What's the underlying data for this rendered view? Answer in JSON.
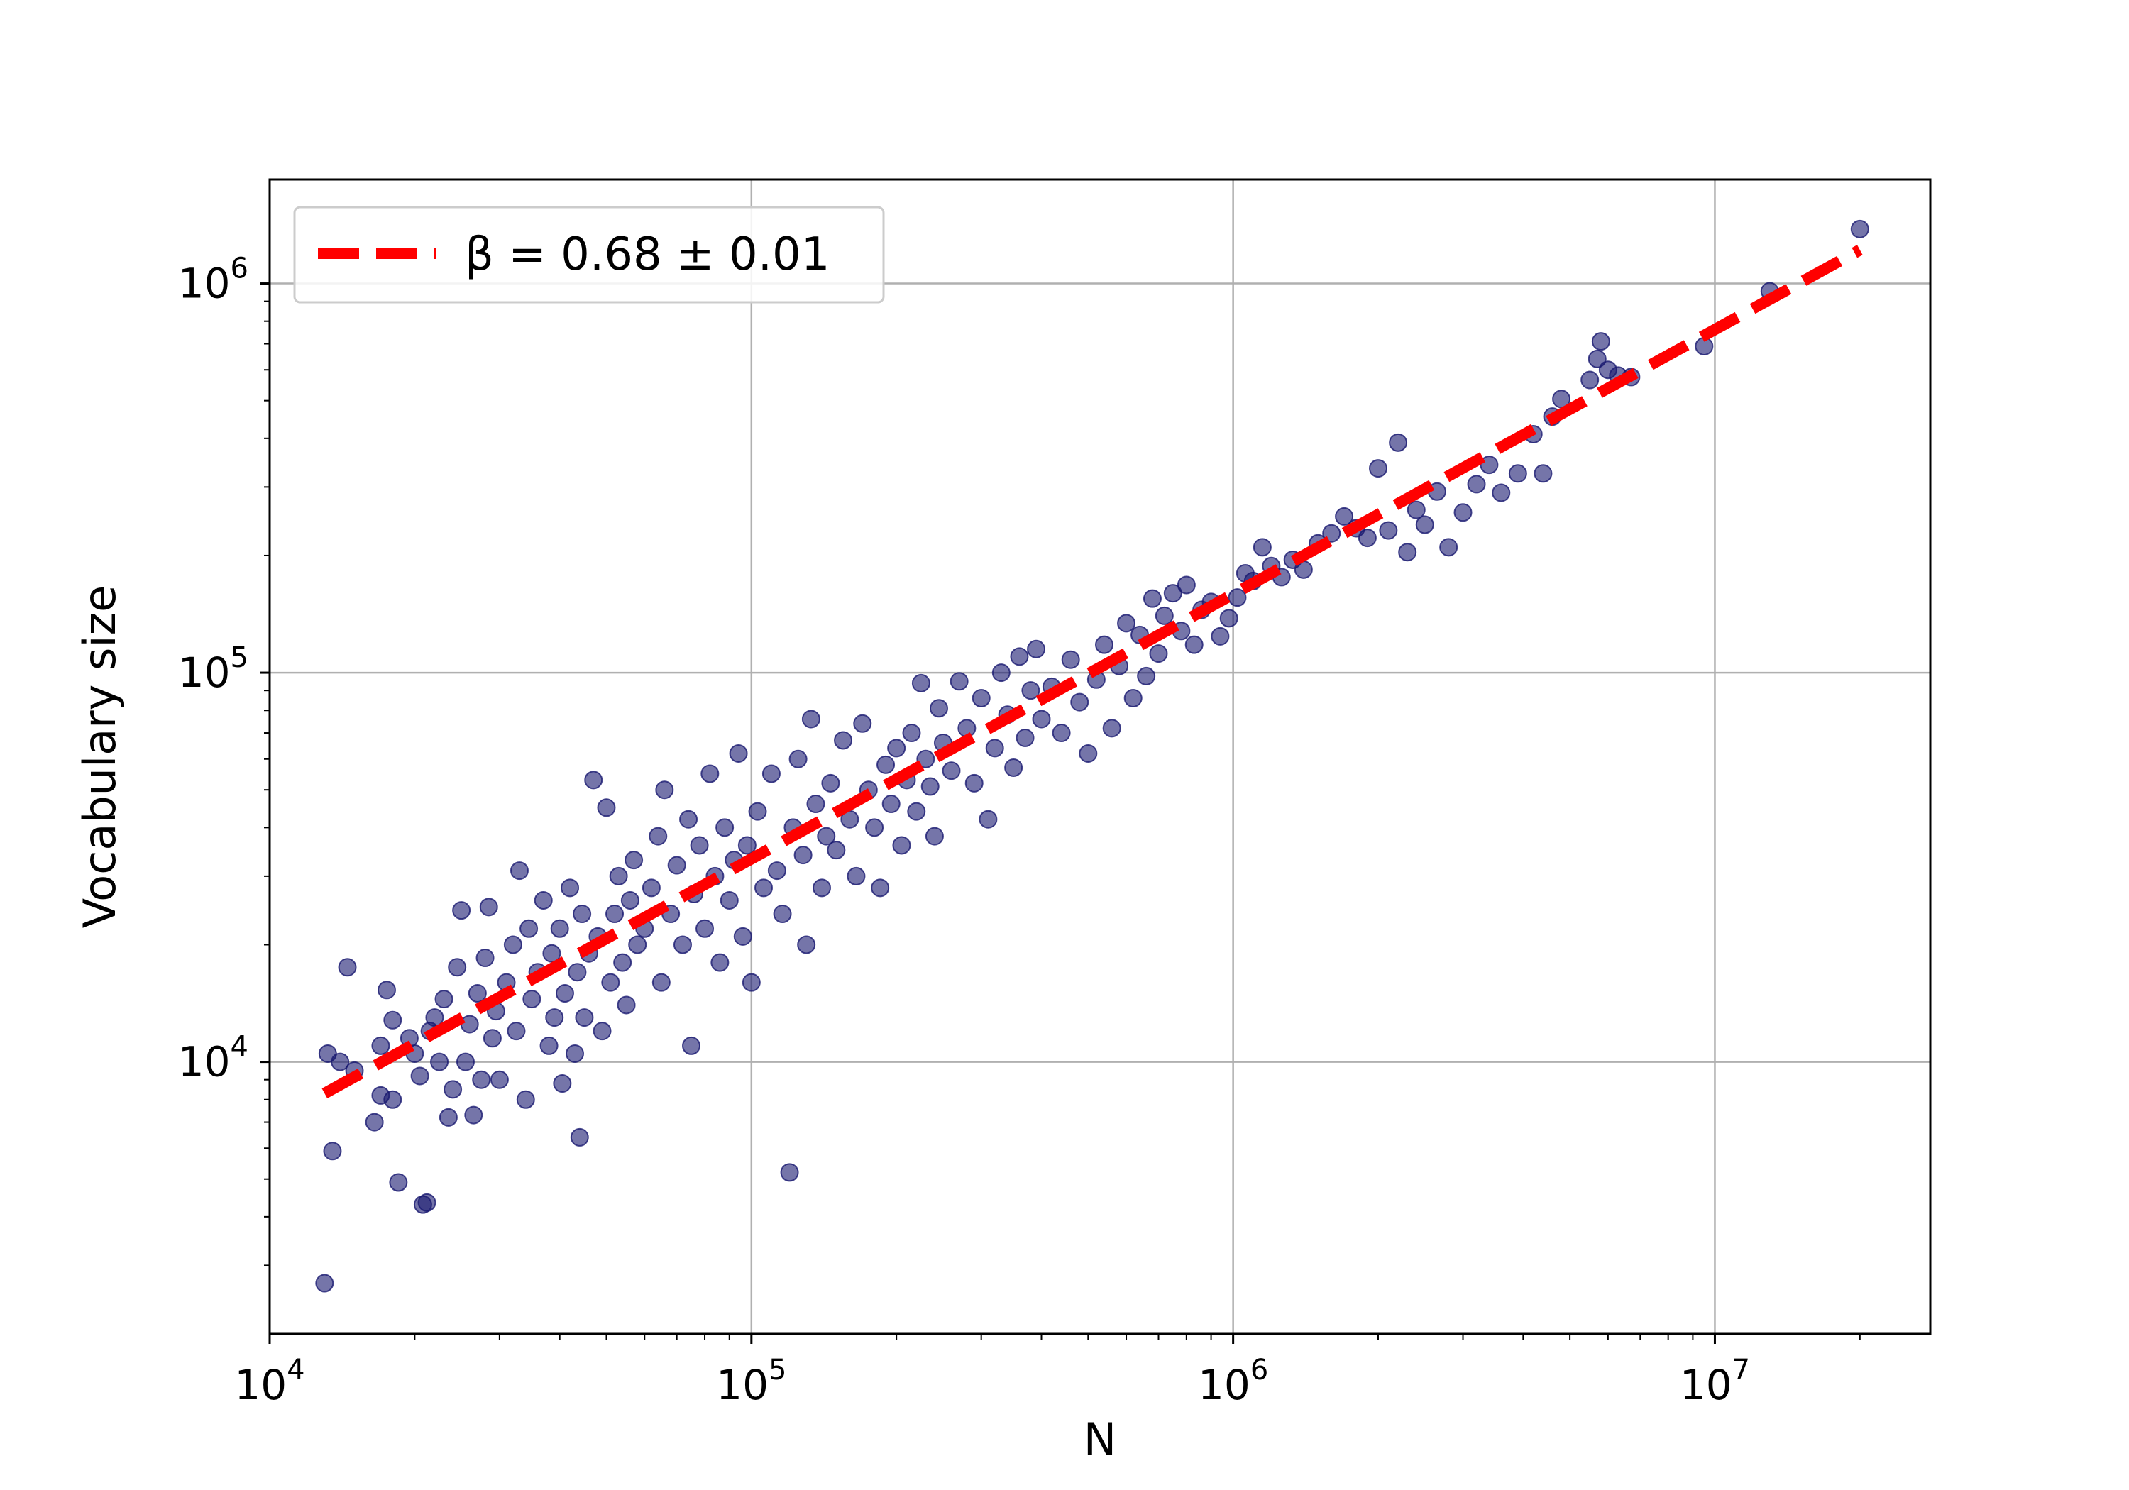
{
  "chart_data": {
    "type": "scatter",
    "title": "",
    "xlabel": "N",
    "ylabel": "Vocabulary size",
    "x_scale": "log",
    "y_scale": "log",
    "xlim": [
      10000,
      28000000
    ],
    "ylim": [
      2000,
      1850000
    ],
    "grid": true,
    "legend_position": "top-left",
    "x_ticks": [
      {
        "base": "10",
        "exp": "4",
        "value": 10000
      },
      {
        "base": "10",
        "exp": "5",
        "value": 100000
      },
      {
        "base": "10",
        "exp": "6",
        "value": 1000000
      },
      {
        "base": "10",
        "exp": "7",
        "value": 10000000
      }
    ],
    "y_ticks": [
      {
        "base": "10",
        "exp": "4",
        "value": 10000
      },
      {
        "base": "10",
        "exp": "5",
        "value": 100000
      },
      {
        "base": "10",
        "exp": "6",
        "value": 1000000
      }
    ],
    "fit": {
      "label": "β = 0.68 ± 0.01",
      "beta": 0.68,
      "beta_err": 0.01,
      "color": "#ff0000",
      "style": "dashed",
      "x_range": [
        13000,
        20000000
      ],
      "y_range": [
        8300,
        1220000
      ]
    },
    "scatter_color": "#191970",
    "points": [
      [
        13000,
        2700
      ],
      [
        13500,
        5900
      ],
      [
        13200,
        10500
      ],
      [
        14500,
        17500
      ],
      [
        14000,
        10000
      ],
      [
        15000,
        9500
      ],
      [
        16500,
        7000
      ],
      [
        17000,
        11000
      ],
      [
        17500,
        15300
      ],
      [
        17000,
        8200
      ],
      [
        18000,
        12800
      ],
      [
        18500,
        4900
      ],
      [
        18000,
        8000
      ],
      [
        19500,
        11500
      ],
      [
        20000,
        10500
      ],
      [
        20500,
        9200
      ],
      [
        20800,
        4300
      ],
      [
        21200,
        4350
      ],
      [
        21500,
        12000
      ],
      [
        22000,
        13000
      ],
      [
        22500,
        10000
      ],
      [
        23000,
        14500
      ],
      [
        23500,
        7200
      ],
      [
        24000,
        8500
      ],
      [
        24500,
        17500
      ],
      [
        25000,
        24500
      ],
      [
        25500,
        10000
      ],
      [
        26000,
        12500
      ],
      [
        26500,
        7300
      ],
      [
        27000,
        15000
      ],
      [
        27500,
        9000
      ],
      [
        28000,
        18500
      ],
      [
        28500,
        25000
      ],
      [
        29000,
        11500
      ],
      [
        29500,
        13500
      ],
      [
        30000,
        9000
      ],
      [
        31000,
        16000
      ],
      [
        32000,
        20000
      ],
      [
        32500,
        12000
      ],
      [
        33000,
        31000
      ],
      [
        34000,
        8000
      ],
      [
        34500,
        22000
      ],
      [
        35000,
        14500
      ],
      [
        36000,
        17000
      ],
      [
        37000,
        26000
      ],
      [
        38000,
        11000
      ],
      [
        38500,
        19000
      ],
      [
        39000,
        13000
      ],
      [
        40000,
        22000
      ],
      [
        40500,
        8800
      ],
      [
        41000,
        15000
      ],
      [
        42000,
        28000
      ],
      [
        43000,
        10500
      ],
      [
        43500,
        17000
      ],
      [
        44000,
        6400
      ],
      [
        44500,
        24000
      ],
      [
        45000,
        13000
      ],
      [
        46000,
        19000
      ],
      [
        47000,
        53000
      ],
      [
        48000,
        21000
      ],
      [
        49000,
        12000
      ],
      [
        50000,
        45000
      ],
      [
        51000,
        16000
      ],
      [
        52000,
        24000
      ],
      [
        53000,
        30000
      ],
      [
        54000,
        18000
      ],
      [
        55000,
        14000
      ],
      [
        56000,
        26000
      ],
      [
        57000,
        33000
      ],
      [
        58000,
        20000
      ],
      [
        60000,
        22000
      ],
      [
        62000,
        28000
      ],
      [
        64000,
        38000
      ],
      [
        65000,
        16000
      ],
      [
        66000,
        50000
      ],
      [
        68000,
        24000
      ],
      [
        70000,
        32000
      ],
      [
        72000,
        20000
      ],
      [
        74000,
        42000
      ],
      [
        75000,
        11000
      ],
      [
        76000,
        27000
      ],
      [
        78000,
        36000
      ],
      [
        80000,
        22000
      ],
      [
        82000,
        55000
      ],
      [
        84000,
        30000
      ],
      [
        86000,
        18000
      ],
      [
        88000,
        40000
      ],
      [
        90000,
        26000
      ],
      [
        92000,
        33000
      ],
      [
        94000,
        62000
      ],
      [
        96000,
        21000
      ],
      [
        98000,
        36000
      ],
      [
        100000,
        16000
      ],
      [
        103000,
        44000
      ],
      [
        106000,
        28000
      ],
      [
        110000,
        55000
      ],
      [
        113000,
        31000
      ],
      [
        116000,
        24000
      ],
      [
        120000,
        5200
      ],
      [
        122000,
        40000
      ],
      [
        125000,
        60000
      ],
      [
        128000,
        34000
      ],
      [
        130000,
        20000
      ],
      [
        133000,
        76000
      ],
      [
        136000,
        46000
      ],
      [
        140000,
        28000
      ],
      [
        143000,
        38000
      ],
      [
        146000,
        52000
      ],
      [
        150000,
        35000
      ],
      [
        155000,
        67000
      ],
      [
        160000,
        42000
      ],
      [
        165000,
        30000
      ],
      [
        170000,
        74000
      ],
      [
        175000,
        50000
      ],
      [
        180000,
        40000
      ],
      [
        185000,
        28000
      ],
      [
        190000,
        58000
      ],
      [
        195000,
        46000
      ],
      [
        200000,
        64000
      ],
      [
        205000,
        36000
      ],
      [
        210000,
        53000
      ],
      [
        215000,
        70000
      ],
      [
        220000,
        44000
      ],
      [
        225000,
        94000
      ],
      [
        230000,
        60000
      ],
      [
        235000,
        51000
      ],
      [
        240000,
        38000
      ],
      [
        245000,
        81000
      ],
      [
        250000,
        66000
      ],
      [
        260000,
        56000
      ],
      [
        270000,
        95000
      ],
      [
        280000,
        72000
      ],
      [
        290000,
        52000
      ],
      [
        300000,
        86000
      ],
      [
        310000,
        42000
      ],
      [
        320000,
        64000
      ],
      [
        330000,
        100000
      ],
      [
        340000,
        78000
      ],
      [
        350000,
        57000
      ],
      [
        360000,
        110000
      ],
      [
        370000,
        68000
      ],
      [
        380000,
        90000
      ],
      [
        390000,
        115000
      ],
      [
        400000,
        76000
      ],
      [
        420000,
        92000
      ],
      [
        440000,
        70000
      ],
      [
        460000,
        108000
      ],
      [
        480000,
        84000
      ],
      [
        500000,
        62000
      ],
      [
        520000,
        96000
      ],
      [
        540000,
        118000
      ],
      [
        560000,
        72000
      ],
      [
        580000,
        104000
      ],
      [
        600000,
        134000
      ],
      [
        620000,
        86000
      ],
      [
        640000,
        125000
      ],
      [
        660000,
        98000
      ],
      [
        680000,
        155000
      ],
      [
        700000,
        112000
      ],
      [
        720000,
        140000
      ],
      [
        750000,
        160000
      ],
      [
        780000,
        128000
      ],
      [
        800000,
        168000
      ],
      [
        830000,
        118000
      ],
      [
        860000,
        145000
      ],
      [
        900000,
        152000
      ],
      [
        940000,
        124000
      ],
      [
        980000,
        138000
      ],
      [
        1020000,
        156000
      ],
      [
        1060000,
        180000
      ],
      [
        1100000,
        172000
      ],
      [
        1150000,
        210000
      ],
      [
        1200000,
        188000
      ],
      [
        1260000,
        176000
      ],
      [
        1330000,
        195000
      ],
      [
        1400000,
        184000
      ],
      [
        1500000,
        215000
      ],
      [
        1600000,
        228000
      ],
      [
        1700000,
        252000
      ],
      [
        1800000,
        235000
      ],
      [
        1900000,
        222000
      ],
      [
        2000000,
        335000
      ],
      [
        2100000,
        232000
      ],
      [
        2200000,
        390000
      ],
      [
        2300000,
        204000
      ],
      [
        2400000,
        262000
      ],
      [
        2500000,
        240000
      ],
      [
        2650000,
        292000
      ],
      [
        2800000,
        210000
      ],
      [
        3000000,
        258000
      ],
      [
        3200000,
        305000
      ],
      [
        3400000,
        342000
      ],
      [
        3600000,
        290000
      ],
      [
        3900000,
        325000
      ],
      [
        4200000,
        410000
      ],
      [
        4400000,
        325000
      ],
      [
        4600000,
        455000
      ],
      [
        4800000,
        505000
      ],
      [
        5500000,
        565000
      ],
      [
        5700000,
        640000
      ],
      [
        5800000,
        710000
      ],
      [
        6000000,
        600000
      ],
      [
        6300000,
        580000
      ],
      [
        6700000,
        575000
      ],
      [
        9500000,
        690000
      ],
      [
        13000000,
        955000
      ],
      [
        20000000,
        1380000
      ]
    ]
  }
}
